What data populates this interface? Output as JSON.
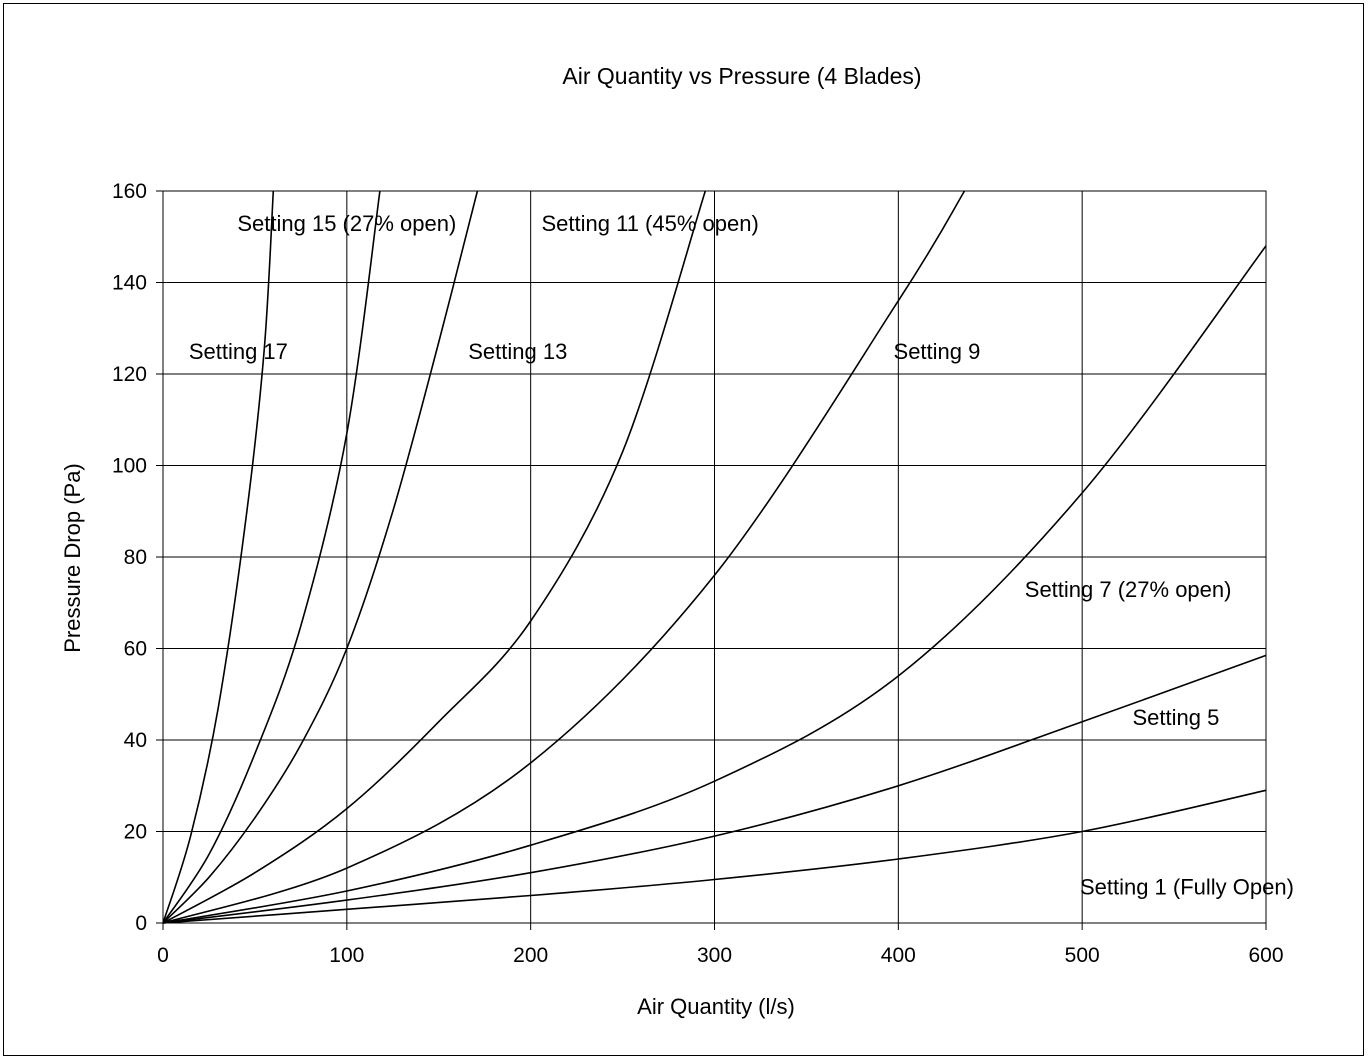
{
  "chart_data": {
    "type": "line",
    "title": "Air Quantity vs Pressure (4 Blades)",
    "xlabel": "Air Quantity (l/s)",
    "ylabel": "Pressure Drop (Pa)",
    "xlim": [
      0,
      600
    ],
    "ylim": [
      0,
      160
    ],
    "xticks": [
      0,
      100,
      200,
      300,
      400,
      500,
      600
    ],
    "yticks": [
      0,
      20,
      40,
      60,
      80,
      100,
      120,
      140,
      160
    ],
    "grid": true,
    "line_color": "#000000",
    "series": [
      {
        "points": [
          [
            0,
            0
          ],
          [
            100,
            3
          ],
          [
            200,
            6
          ],
          [
            300,
            9.5
          ],
          [
            400,
            14
          ],
          [
            500,
            20
          ],
          [
            600,
            29
          ]
        ]
      },
      {
        "points": [
          [
            0,
            0
          ],
          [
            100,
            5
          ],
          [
            200,
            11
          ],
          [
            300,
            19
          ],
          [
            400,
            30
          ],
          [
            500,
            44
          ],
          [
            600,
            58.5
          ]
        ]
      },
      {
        "points": [
          [
            0,
            0
          ],
          [
            100,
            7
          ],
          [
            200,
            17
          ],
          [
            300,
            31
          ],
          [
            400,
            54
          ],
          [
            500,
            94
          ],
          [
            600,
            148
          ]
        ]
      },
      {
        "points": [
          [
            0,
            0
          ],
          [
            100,
            12
          ],
          [
            200,
            35
          ],
          [
            300,
            76
          ],
          [
            400,
            136
          ],
          [
            436,
            160
          ]
        ]
      },
      {
        "points": [
          [
            0,
            0
          ],
          [
            50,
            11
          ],
          [
            100,
            25
          ],
          [
            150,
            44
          ],
          [
            200,
            66
          ],
          [
            250,
            103
          ],
          [
            295,
            160
          ]
        ]
      },
      {
        "points": [
          [
            0,
            0
          ],
          [
            25,
            10
          ],
          [
            50,
            23
          ],
          [
            75,
            39
          ],
          [
            100,
            60
          ],
          [
            125,
            90
          ],
          [
            150,
            127
          ],
          [
            171,
            160
          ]
        ]
      },
      {
        "points": [
          [
            0,
            0
          ],
          [
            25,
            15
          ],
          [
            50,
            37
          ],
          [
            75,
            65
          ],
          [
            100,
            107
          ],
          [
            118,
            160
          ]
        ]
      },
      {
        "points": [
          [
            0,
            0
          ],
          [
            15,
            19
          ],
          [
            30,
            47
          ],
          [
            45,
            88
          ],
          [
            55,
            125
          ],
          [
            60,
            160
          ]
        ]
      }
    ],
    "annotations": [
      {
        "text": "Setting 1 (Fully Open)",
        "x": 557,
        "y": 8
      },
      {
        "text": "Setting 5",
        "x": 551,
        "y": 45
      },
      {
        "text": "Setting 7 (27% open)",
        "x": 525,
        "y": 73
      },
      {
        "text": "Setting 9",
        "x": 421,
        "y": 125
      },
      {
        "text": "Setting 11 (45% open)",
        "x": 265,
        "y": 153
      },
      {
        "text": "Setting 13",
        "x": 193,
        "y": 125
      },
      {
        "text": "Setting 15 (27% open)",
        "x": 100,
        "y": 153
      },
      {
        "text": "Setting 17",
        "x": 41,
        "y": 125
      }
    ]
  }
}
